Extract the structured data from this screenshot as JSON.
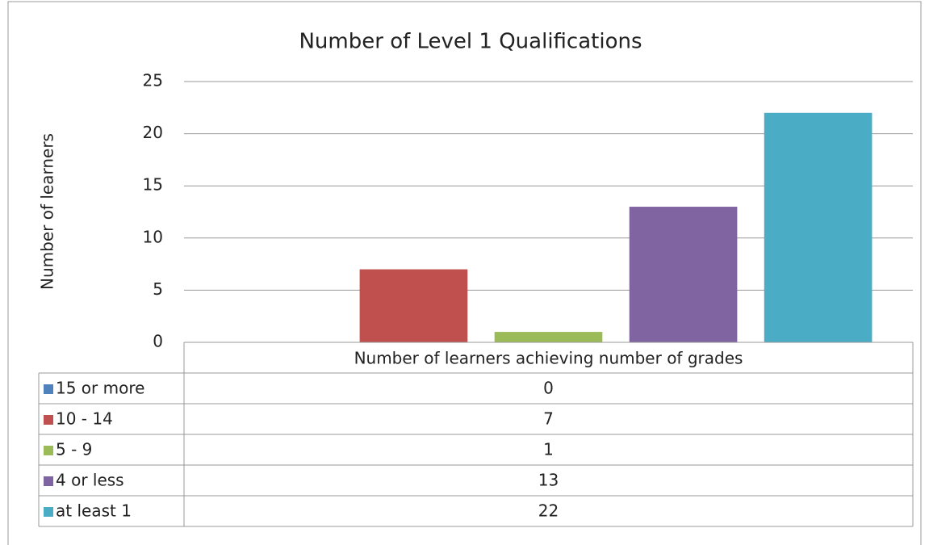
{
  "chart_data": {
    "type": "bar",
    "title": "Number of Level 1 Qualifications",
    "y_label": "Number of learners",
    "categories": [
      "Number of learners achieving number of grades"
    ],
    "series": [
      {
        "name": "15 or more",
        "color": "#4f81bd",
        "values": [
          0
        ]
      },
      {
        "name": "10 - 14",
        "color": "#c0504d",
        "values": [
          7
        ]
      },
      {
        "name": "5 - 9",
        "color": "#9bbb59",
        "values": [
          1
        ]
      },
      {
        "name": "4 or less",
        "color": "#8064a2",
        "values": [
          13
        ]
      },
      {
        "name": "at least 1",
        "color": "#4bacc6",
        "values": [
          22
        ]
      }
    ],
    "ylim": [
      0,
      25
    ],
    "yticks": [
      0,
      5,
      10,
      15,
      20,
      25
    ],
    "grid": true
  }
}
